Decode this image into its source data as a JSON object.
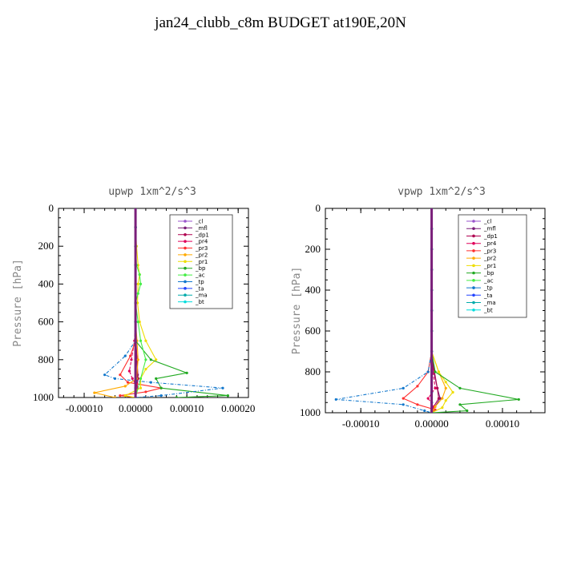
{
  "page_title": "jan24_clubb_c8m  BUDGET at190E,20N",
  "chart_data": [
    {
      "type": "line",
      "title": "upwp   1xm^2/s^3",
      "ylabel": "Pressure [hPa]",
      "xlim": [
        -0.00015,
        0.00022
      ],
      "ylim": [
        1000,
        0
      ],
      "xticks": [
        "-0.00010",
        "0.00000",
        "0.00010",
        "0.00020"
      ],
      "xtick_values": [
        -0.0001,
        0.0,
        0.0001,
        0.0002
      ],
      "yticks": [
        0,
        200,
        400,
        600,
        800,
        1000
      ],
      "legend_position": "top-right",
      "series": [
        {
          "name": "_cl",
          "color": "#9955cc",
          "marker": "plus",
          "dash": "",
          "x": [
            0,
            0,
            0,
            0,
            0,
            0,
            0,
            0,
            0,
            0,
            0,
            0,
            0
          ],
          "y": [
            0,
            100,
            200,
            300,
            400,
            500,
            600,
            700,
            800,
            900,
            950,
            980,
            1000
          ]
        },
        {
          "name": "_mfl",
          "color": "#7a1f7a",
          "marker": "dot",
          "dash": "",
          "x": [
            0,
            0,
            0,
            0,
            0,
            0,
            0,
            0,
            3e-06,
            4e-06,
            2e-06,
            0,
            0
          ],
          "y": [
            0,
            100,
            200,
            300,
            400,
            500,
            600,
            700,
            800,
            880,
            940,
            975,
            1000
          ]
        },
        {
          "name": "_dp1",
          "color": "#b00050",
          "marker": "dot",
          "dash": "",
          "x": [
            0,
            0,
            0,
            0,
            0,
            0,
            0,
            1e-06,
            3e-06,
            5e-06,
            2e-06,
            0
          ],
          "y": [
            0,
            100,
            200,
            300,
            400,
            500,
            600,
            700,
            800,
            900,
            960,
            1000
          ]
        },
        {
          "name": "_pr4",
          "color": "#e0005a",
          "marker": "circle",
          "dash": "4,2",
          "x": [
            0,
            0,
            0,
            0,
            0,
            0,
            0,
            -2e-06,
            -8e-06,
            -1.2e-05,
            -6e-06,
            4e-06,
            0
          ],
          "y": [
            0,
            100,
            200,
            300,
            400,
            500,
            600,
            700,
            800,
            860,
            900,
            950,
            1000
          ]
        },
        {
          "name": "_pr3",
          "color": "#ff3030",
          "marker": "tri",
          "dash": "",
          "x": [
            0,
            0,
            0,
            0,
            0,
            0,
            0,
            0,
            -1e-05,
            -3e-05,
            -1.5e-05,
            5e-05,
            2e-05,
            -3e-05,
            0
          ],
          "y": [
            0,
            100,
            200,
            300,
            400,
            500,
            600,
            700,
            780,
            880,
            920,
            950,
            970,
            990,
            1000
          ]
        },
        {
          "name": "_pr2",
          "color": "#ffaa00",
          "marker": "tri",
          "dash": "",
          "x": [
            0,
            0,
            0,
            0,
            0,
            0,
            0,
            3e-06,
            5e-06,
            2e-06,
            -2e-05,
            -8e-05,
            -4e-05
          ],
          "y": [
            0,
            100,
            200,
            300,
            400,
            500,
            600,
            700,
            800,
            900,
            940,
            975,
            1000
          ]
        },
        {
          "name": "_pr1",
          "color": "#eedd00",
          "marker": "circle",
          "dash": "",
          "x": [
            0,
            0,
            2e-06,
            5e-06,
            8e-06,
            5e-06,
            4e-06,
            8e-06,
            2e-05,
            4e-05,
            2e-05,
            1e-05,
            1e-05,
            -2e-05,
            0
          ],
          "y": [
            0,
            100,
            200,
            300,
            350,
            400,
            500,
            600,
            700,
            800,
            850,
            900,
            950,
            990,
            1000
          ]
        },
        {
          "name": "_bp",
          "color": "#22aa22",
          "marker": "x",
          "dash": "",
          "x": [
            0,
            0,
            0,
            0,
            0,
            0,
            0,
            0,
            3e-05,
            0.0001,
            4e-05,
            5e-05,
            0.00018,
            8e-05
          ],
          "y": [
            0,
            100,
            200,
            300,
            400,
            500,
            600,
            700,
            800,
            870,
            900,
            950,
            990,
            1000
          ]
        },
        {
          "name": "_ac",
          "color": "#44ee44",
          "marker": "dot",
          "dash": "",
          "x": [
            0,
            0,
            0,
            2e-06,
            8e-06,
            1e-05,
            5e-06,
            0,
            5e-06,
            1e-05,
            2e-05,
            1e-05,
            0
          ],
          "y": [
            0,
            100,
            200,
            300,
            350,
            400,
            450,
            500,
            600,
            700,
            800,
            900,
            1000
          ]
        },
        {
          "name": "_tp",
          "color": "#1177cc",
          "marker": "x",
          "dash": "4,2,1,2",
          "x": [
            0,
            0,
            0,
            0,
            0,
            0,
            0,
            0,
            -2e-05,
            -6e-05,
            -4e-05,
            3e-05,
            0.00017,
            5e-05,
            0
          ],
          "y": [
            0,
            100,
            200,
            300,
            400,
            500,
            600,
            700,
            780,
            880,
            900,
            920,
            950,
            990,
            1000
          ]
        },
        {
          "name": "_ta",
          "color": "#2244ff",
          "marker": "plus",
          "dash": "",
          "x": [
            0,
            0,
            0,
            0,
            0,
            0,
            0,
            0,
            0,
            0,
            0,
            0
          ],
          "y": [
            0,
            100,
            200,
            300,
            400,
            500,
            600,
            700,
            800,
            900,
            950,
            1000
          ]
        },
        {
          "name": "_ma",
          "color": "#00aaaa",
          "marker": "dash",
          "dash": "",
          "x": [
            0,
            0,
            0,
            0,
            0,
            0,
            0,
            0,
            0,
            0,
            0,
            0
          ],
          "y": [
            0,
            100,
            200,
            300,
            400,
            500,
            600,
            700,
            800,
            900,
            950,
            1000
          ]
        },
        {
          "name": "_bt",
          "color": "#00dddd",
          "marker": "diamond",
          "dash": "",
          "x": [
            0,
            0,
            0,
            0,
            0,
            0,
            0,
            0,
            0,
            0,
            0,
            0
          ],
          "y": [
            0,
            100,
            200,
            300,
            400,
            500,
            600,
            700,
            800,
            900,
            950,
            1000
          ]
        }
      ]
    },
    {
      "type": "line",
      "title": "vpwp   1xm^2/s^3",
      "ylabel": "Pressure [hPa]",
      "xlim": [
        -0.00015,
        0.00016
      ],
      "ylim": [
        1000,
        0
      ],
      "xticks": [
        "-0.00010",
        "0.00000",
        "0.00010"
      ],
      "xtick_values": [
        -0.0001,
        0.0,
        0.0001
      ],
      "yticks": [
        0,
        200,
        400,
        600,
        800,
        1000
      ],
      "legend_position": "top-right",
      "series": [
        {
          "name": "_cl",
          "color": "#9955cc",
          "marker": "plus",
          "dash": "",
          "x": [
            0,
            0,
            0,
            0,
            0,
            0,
            0,
            0,
            0,
            0,
            0,
            0
          ],
          "y": [
            0,
            100,
            200,
            300,
            400,
            500,
            600,
            700,
            800,
            900,
            950,
            1000
          ]
        },
        {
          "name": "_mfl",
          "color": "#7a1f7a",
          "marker": "dot",
          "dash": "",
          "x": [
            0,
            0,
            0,
            0,
            0,
            0,
            0,
            0,
            3e-06,
            8e-06,
            1.2e-05,
            5e-06,
            0
          ],
          "y": [
            0,
            100,
            200,
            300,
            400,
            500,
            600,
            700,
            800,
            880,
            930,
            970,
            1000
          ]
        },
        {
          "name": "_dp1",
          "color": "#b00050",
          "marker": "dot",
          "dash": "",
          "x": [
            0,
            0,
            0,
            0,
            0,
            0,
            0,
            0,
            4e-06,
            8e-06,
            1e-05,
            3e-06,
            0
          ],
          "y": [
            0,
            100,
            200,
            300,
            400,
            500,
            600,
            700,
            800,
            880,
            930,
            970,
            1000
          ]
        },
        {
          "name": "_pr4",
          "color": "#e0005a",
          "marker": "circle",
          "dash": "4,2",
          "x": [
            0,
            0,
            0,
            0,
            0,
            0,
            0,
            0,
            2e-06,
            5e-06,
            -5e-06,
            3e-06,
            0
          ],
          "y": [
            0,
            100,
            200,
            300,
            400,
            500,
            600,
            700,
            800,
            880,
            930,
            970,
            1000
          ]
        },
        {
          "name": "_pr3",
          "color": "#ff3030",
          "marker": "tri",
          "dash": "",
          "x": [
            0,
            0,
            0,
            0,
            0,
            0,
            0,
            0,
            -5e-06,
            -2e-05,
            -4e-05,
            -2e-05,
            5e-06,
            0
          ],
          "y": [
            0,
            100,
            200,
            300,
            400,
            500,
            600,
            700,
            800,
            870,
            930,
            960,
            985,
            1000
          ]
        },
        {
          "name": "_pr2",
          "color": "#ffaa00",
          "marker": "tri",
          "dash": "",
          "x": [
            0,
            0,
            0,
            0,
            0,
            0,
            0,
            0,
            1e-05,
            2e-05,
            1.5e-05,
            5e-06,
            0
          ],
          "y": [
            0,
            100,
            200,
            300,
            400,
            500,
            600,
            700,
            800,
            880,
            930,
            970,
            1000
          ]
        },
        {
          "name": "_pr1",
          "color": "#eedd00",
          "marker": "circle",
          "dash": "",
          "x": [
            0,
            0,
            0,
            0,
            0,
            0,
            0,
            0,
            1e-05,
            2e-05,
            3e-05,
            2e-05,
            1.5e-05,
            0
          ],
          "y": [
            0,
            100,
            200,
            300,
            400,
            500,
            600,
            700,
            800,
            850,
            900,
            940,
            975,
            1000
          ]
        },
        {
          "name": "_bp",
          "color": "#22aa22",
          "marker": "x",
          "dash": "",
          "x": [
            0,
            0,
            0,
            0,
            0,
            0,
            0,
            0,
            5e-06,
            4e-05,
            0.000123,
            4e-05,
            5e-05,
            0
          ],
          "y": [
            0,
            100,
            200,
            300,
            400,
            500,
            600,
            700,
            800,
            880,
            935,
            960,
            990,
            1000
          ]
        },
        {
          "name": "_ac",
          "color": "#44ee44",
          "marker": "dot",
          "dash": "",
          "x": [
            0,
            0,
            0,
            0,
            0,
            0,
            0,
            0,
            0,
            0,
            0,
            0
          ],
          "y": [
            0,
            100,
            200,
            300,
            400,
            500,
            600,
            700,
            800,
            900,
            950,
            1000
          ]
        },
        {
          "name": "_tp",
          "color": "#1177cc",
          "marker": "x",
          "dash": "4,2,1,2",
          "x": [
            0,
            0,
            0,
            0,
            0,
            0,
            0,
            0,
            -5e-06,
            -4e-05,
            -0.000135,
            -4e-05,
            -1e-05,
            0
          ],
          "y": [
            0,
            100,
            200,
            300,
            400,
            500,
            600,
            700,
            800,
            880,
            935,
            960,
            990,
            1000
          ]
        },
        {
          "name": "_ta",
          "color": "#2244ff",
          "marker": "plus",
          "dash": "",
          "x": [
            0,
            0,
            0,
            0,
            0,
            0,
            0,
            0,
            0,
            0,
            0,
            0
          ],
          "y": [
            0,
            100,
            200,
            300,
            400,
            500,
            600,
            700,
            800,
            900,
            950,
            1000
          ]
        },
        {
          "name": "_ma",
          "color": "#00aaaa",
          "marker": "dash",
          "dash": "",
          "x": [
            0,
            0,
            0,
            0,
            0,
            0,
            0,
            0,
            0,
            0,
            0,
            0
          ],
          "y": [
            0,
            100,
            200,
            300,
            400,
            500,
            600,
            700,
            800,
            900,
            950,
            1000
          ]
        },
        {
          "name": "_bt",
          "color": "#00dddd",
          "marker": "diamond",
          "dash": "",
          "x": [
            0,
            0,
            0,
            0,
            0,
            0,
            0,
            0,
            0,
            0,
            0,
            0
          ],
          "y": [
            0,
            100,
            200,
            300,
            400,
            500,
            600,
            700,
            800,
            900,
            950,
            1000
          ]
        }
      ]
    }
  ]
}
